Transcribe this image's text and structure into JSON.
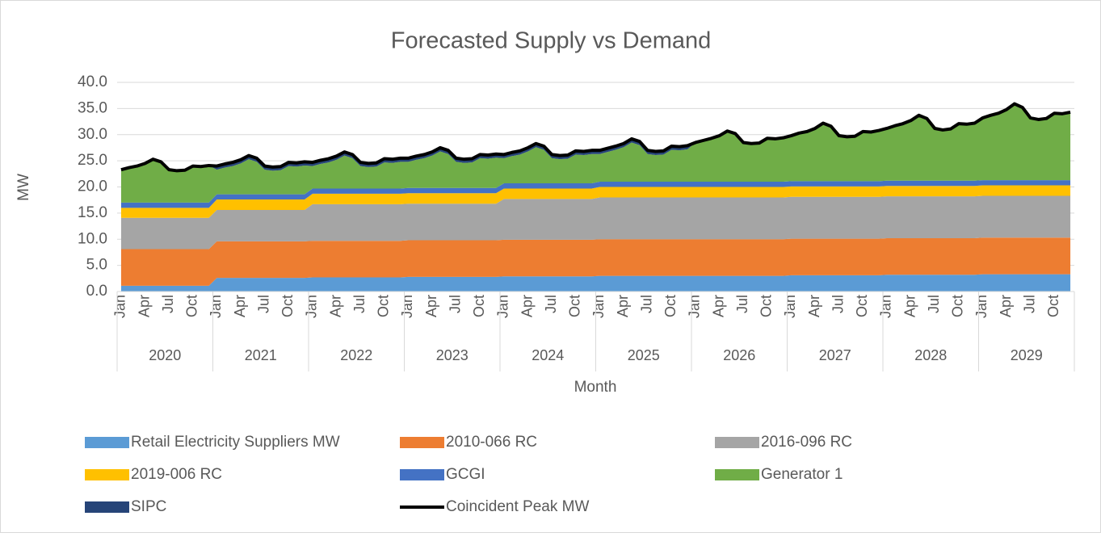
{
  "chart_data": {
    "type": "stacked_area",
    "title": "Forecasted Supply vs Demand",
    "x_label": "Month",
    "y_label": "MW",
    "categories": [
      "Jan",
      null,
      null,
      "Apr",
      null,
      null,
      "Jul",
      null,
      null,
      "Oct",
      null,
      null,
      "Jan",
      null,
      null,
      "Apr",
      null,
      null,
      "Jul",
      null,
      null,
      "Oct",
      null,
      null,
      "Jan",
      null,
      null,
      "Apr",
      null,
      null,
      "Jul",
      null,
      null,
      "Oct",
      null,
      null,
      "Jan",
      null,
      null,
      "Apr",
      null,
      null,
      "Jul",
      null,
      null,
      "Oct",
      null,
      null,
      "Jan",
      null,
      null,
      "Apr",
      null,
      null,
      "Jul",
      null,
      null,
      "Oct",
      null,
      null,
      "Jan",
      null,
      null,
      "Apr",
      null,
      null,
      "Jul",
      null,
      null,
      "Oct",
      null,
      null,
      "Jan",
      null,
      null,
      "Apr",
      null,
      null,
      "Jul",
      null,
      null,
      "Oct",
      null,
      null,
      "Jan",
      null,
      null,
      "Apr",
      null,
      null,
      "Jul",
      null,
      null,
      "Oct",
      null,
      null,
      "Jan",
      null,
      null,
      "Apr",
      null,
      null,
      "Jul",
      null,
      null,
      "Oct",
      null,
      null,
      "Jan",
      null,
      null,
      "Apr",
      null,
      null,
      "Jul",
      null,
      null,
      "Oct",
      null,
      null
    ],
    "groups": [
      "2020",
      "2021",
      "2022",
      "2023",
      "2024",
      "2025",
      "2026",
      "2027",
      "2028",
      "2029"
    ],
    "ylim": [
      0,
      40
    ],
    "yticks": [
      {
        "value": 0,
        "label": "0.0"
      },
      {
        "value": 5,
        "label": "5.0"
      },
      {
        "value": 10,
        "label": "10.0"
      },
      {
        "value": 15,
        "label": "15.0"
      },
      {
        "value": 20,
        "label": "20.0"
      },
      {
        "value": 25,
        "label": "25.0"
      },
      {
        "value": 30,
        "label": "30.0"
      },
      {
        "value": 35,
        "label": "35.0"
      },
      {
        "value": 40,
        "label": "40.0"
      }
    ],
    "grid": true,
    "legend": "bottom",
    "series": [
      {
        "name": "Retail Electricity Suppliers MW",
        "color": "#5b9bd5",
        "values": [
          1.1,
          1.1,
          1.1,
          1.1,
          1.1,
          1.1,
          1.1,
          1.1,
          1.1,
          1.1,
          1.1,
          1.1,
          2.6,
          2.6,
          2.6,
          2.6,
          2.6,
          2.6,
          2.6,
          2.6,
          2.6,
          2.6,
          2.6,
          2.6,
          2.7,
          2.7,
          2.7,
          2.7,
          2.7,
          2.7,
          2.7,
          2.7,
          2.7,
          2.7,
          2.7,
          2.7,
          2.8,
          2.8,
          2.8,
          2.8,
          2.8,
          2.8,
          2.8,
          2.8,
          2.8,
          2.8,
          2.8,
          2.8,
          2.9,
          2.9,
          2.9,
          2.9,
          2.9,
          2.9,
          2.9,
          2.9,
          2.9,
          2.9,
          2.9,
          2.9,
          3.0,
          3.0,
          3.0,
          3.0,
          3.0,
          3.0,
          3.0,
          3.0,
          3.0,
          3.0,
          3.0,
          3.0,
          3.0,
          3.0,
          3.0,
          3.0,
          3.0,
          3.0,
          3.0,
          3.0,
          3.0,
          3.0,
          3.0,
          3.0,
          3.1,
          3.1,
          3.1,
          3.1,
          3.1,
          3.1,
          3.1,
          3.1,
          3.1,
          3.1,
          3.1,
          3.1,
          3.2,
          3.2,
          3.2,
          3.2,
          3.2,
          3.2,
          3.2,
          3.2,
          3.2,
          3.2,
          3.2,
          3.2,
          3.3,
          3.3,
          3.3,
          3.3,
          3.3,
          3.3,
          3.3,
          3.3,
          3.3,
          3.3,
          3.3,
          3.3
        ]
      },
      {
        "name": "2010-066 RC",
        "color": "#ed7d31",
        "values": [
          7.0,
          7.0,
          7.0,
          7.0,
          7.0,
          7.0,
          7.0,
          7.0,
          7.0,
          7.0,
          7.0,
          7.0,
          7.0,
          7.0,
          7.0,
          7.0,
          7.0,
          7.0,
          7.0,
          7.0,
          7.0,
          7.0,
          7.0,
          7.0,
          7.0,
          7.0,
          7.0,
          7.0,
          7.0,
          7.0,
          7.0,
          7.0,
          7.0,
          7.0,
          7.0,
          7.0,
          7.0,
          7.0,
          7.0,
          7.0,
          7.0,
          7.0,
          7.0,
          7.0,
          7.0,
          7.0,
          7.0,
          7.0,
          7.0,
          7.0,
          7.0,
          7.0,
          7.0,
          7.0,
          7.0,
          7.0,
          7.0,
          7.0,
          7.0,
          7.0,
          7.0,
          7.0,
          7.0,
          7.0,
          7.0,
          7.0,
          7.0,
          7.0,
          7.0,
          7.0,
          7.0,
          7.0,
          7.0,
          7.0,
          7.0,
          7.0,
          7.0,
          7.0,
          7.0,
          7.0,
          7.0,
          7.0,
          7.0,
          7.0,
          7.0,
          7.0,
          7.0,
          7.0,
          7.0,
          7.0,
          7.0,
          7.0,
          7.0,
          7.0,
          7.0,
          7.0,
          7.0,
          7.0,
          7.0,
          7.0,
          7.0,
          7.0,
          7.0,
          7.0,
          7.0,
          7.0,
          7.0,
          7.0,
          7.0,
          7.0,
          7.0,
          7.0,
          7.0,
          7.0,
          7.0,
          7.0,
          7.0,
          7.0,
          7.0,
          7.0
        ]
      },
      {
        "name": "2016-096 RC",
        "color": "#a5a5a5",
        "values": [
          6.0,
          6.0,
          6.0,
          6.0,
          6.0,
          6.0,
          6.0,
          6.0,
          6.0,
          6.0,
          6.0,
          6.0,
          6.0,
          6.0,
          6.0,
          6.0,
          6.0,
          6.0,
          6.0,
          6.0,
          6.0,
          6.0,
          6.0,
          6.0,
          7.0,
          7.0,
          7.0,
          7.0,
          7.0,
          7.0,
          7.0,
          7.0,
          7.0,
          7.0,
          7.0,
          7.0,
          7.0,
          7.0,
          7.0,
          7.0,
          7.0,
          7.0,
          7.0,
          7.0,
          7.0,
          7.0,
          7.0,
          7.0,
          7.8,
          7.8,
          7.8,
          7.8,
          7.8,
          7.8,
          7.8,
          7.8,
          7.8,
          7.8,
          7.8,
          7.8,
          8.0,
          8.0,
          8.0,
          8.0,
          8.0,
          8.0,
          8.0,
          8.0,
          8.0,
          8.0,
          8.0,
          8.0,
          8.0,
          8.0,
          8.0,
          8.0,
          8.0,
          8.0,
          8.0,
          8.0,
          8.0,
          8.0,
          8.0,
          8.0,
          8.0,
          8.0,
          8.0,
          8.0,
          8.0,
          8.0,
          8.0,
          8.0,
          8.0,
          8.0,
          8.0,
          8.0,
          8.0,
          8.0,
          8.0,
          8.0,
          8.0,
          8.0,
          8.0,
          8.0,
          8.0,
          8.0,
          8.0,
          8.0,
          8.0,
          8.0,
          8.0,
          8.0,
          8.0,
          8.0,
          8.0,
          8.0,
          8.0,
          8.0,
          8.0,
          8.0
        ]
      },
      {
        "name": "2019-006 RC",
        "color": "#ffc000",
        "values": [
          1.9,
          1.9,
          1.9,
          1.9,
          1.9,
          1.9,
          1.9,
          1.9,
          1.9,
          1.9,
          1.9,
          1.9,
          2.0,
          2.0,
          2.0,
          2.0,
          2.0,
          2.0,
          2.0,
          2.0,
          2.0,
          2.0,
          2.0,
          2.0,
          2.0,
          2.0,
          2.0,
          2.0,
          2.0,
          2.0,
          2.0,
          2.0,
          2.0,
          2.0,
          2.0,
          2.0,
          2.0,
          2.0,
          2.0,
          2.0,
          2.0,
          2.0,
          2.0,
          2.0,
          2.0,
          2.0,
          2.0,
          2.0,
          2.0,
          2.0,
          2.0,
          2.0,
          2.0,
          2.0,
          2.0,
          2.0,
          2.0,
          2.0,
          2.0,
          2.0,
          2.0,
          2.0,
          2.0,
          2.0,
          2.0,
          2.0,
          2.0,
          2.0,
          2.0,
          2.0,
          2.0,
          2.0,
          2.0,
          2.0,
          2.0,
          2.0,
          2.0,
          2.0,
          2.0,
          2.0,
          2.0,
          2.0,
          2.0,
          2.0,
          2.0,
          2.0,
          2.0,
          2.0,
          2.0,
          2.0,
          2.0,
          2.0,
          2.0,
          2.0,
          2.0,
          2.0,
          2.0,
          2.0,
          2.0,
          2.0,
          2.0,
          2.0,
          2.0,
          2.0,
          2.0,
          2.0,
          2.0,
          2.0,
          2.0,
          2.0,
          2.0,
          2.0,
          2.0,
          2.0,
          2.0,
          2.0,
          2.0,
          2.0,
          2.0,
          2.0
        ]
      },
      {
        "name": "GCGI",
        "color": "#4472c4",
        "values": [
          1.0,
          1.0,
          1.0,
          1.0,
          1.0,
          1.0,
          1.0,
          1.0,
          1.0,
          1.0,
          1.0,
          1.0,
          1.0,
          1.0,
          1.0,
          1.0,
          1.0,
          1.0,
          1.0,
          1.0,
          1.0,
          1.0,
          1.0,
          1.0,
          1.0,
          1.0,
          1.0,
          1.0,
          1.0,
          1.0,
          1.0,
          1.0,
          1.0,
          1.0,
          1.0,
          1.0,
          1.0,
          1.0,
          1.0,
          1.0,
          1.0,
          1.0,
          1.0,
          1.0,
          1.0,
          1.0,
          1.0,
          1.0,
          1.0,
          1.0,
          1.0,
          1.0,
          1.0,
          1.0,
          1.0,
          1.0,
          1.0,
          1.0,
          1.0,
          1.0,
          1.0,
          1.0,
          1.0,
          1.0,
          1.0,
          1.0,
          1.0,
          1.0,
          1.0,
          1.0,
          1.0,
          1.0,
          1.0,
          1.0,
          1.0,
          1.0,
          1.0,
          1.0,
          1.0,
          1.0,
          1.0,
          1.0,
          1.0,
          1.0,
          1.0,
          1.0,
          1.0,
          1.0,
          1.0,
          1.0,
          1.0,
          1.0,
          1.0,
          1.0,
          1.0,
          1.0,
          1.0,
          1.0,
          1.0,
          1.0,
          1.0,
          1.0,
          1.0,
          1.0,
          1.0,
          1.0,
          1.0,
          1.0,
          1.0,
          1.0,
          1.0,
          1.0,
          1.0,
          1.0,
          1.0,
          1.0,
          1.0,
          1.0,
          1.0,
          1.0
        ]
      },
      {
        "name": "Generator 1",
        "color": "#70ad47",
        "values": [
          6.3,
          6.7,
          7.0,
          7.5,
          8.3,
          7.8,
          6.3,
          6.1,
          6.2,
          7.0,
          6.9,
          7.1,
          4.7,
          5.1,
          5.4,
          5.9,
          6.7,
          6.2,
          4.7,
          4.5,
          4.6,
          5.4,
          5.3,
          5.5,
          4.3,
          4.7,
          5.0,
          5.5,
          6.3,
          5.8,
          4.3,
          4.1,
          4.2,
          5.0,
          4.9,
          5.1,
          5.0,
          5.4,
          5.7,
          6.2,
          7.0,
          6.5,
          5.0,
          4.8,
          4.9,
          5.7,
          5.6,
          5.8,
          4.8,
          5.2,
          5.5,
          6.1,
          6.9,
          6.4,
          4.8,
          4.6,
          4.7,
          5.5,
          5.4,
          5.6,
          5.3,
          5.7,
          6.1,
          6.6,
          7.5,
          7.0,
          5.3,
          5.1,
          5.2,
          6.1,
          6.0,
          6.2,
          7.5,
          7.9,
          8.3,
          8.8,
          9.7,
          9.2,
          7.5,
          7.3,
          7.4,
          8.3,
          8.2,
          8.4,
          8.7,
          9.2,
          9.5,
          10.1,
          11.1,
          10.5,
          8.7,
          8.5,
          8.6,
          9.5,
          9.4,
          9.7,
          10.0,
          10.5,
          10.9,
          11.5,
          12.5,
          11.9,
          10.0,
          9.7,
          9.9,
          10.9,
          10.8,
          11.0,
          11.9,
          12.4,
          12.8,
          13.5,
          14.6,
          13.9,
          11.9,
          11.6,
          11.8,
          12.8,
          12.7,
          13.0
        ]
      },
      {
        "name": "SIPC",
        "color": "#264478",
        "values": [
          0,
          0,
          0,
          0,
          0,
          0,
          0,
          0,
          0,
          0,
          0,
          0,
          0.7,
          0.7,
          0.7,
          0.7,
          0.7,
          0.7,
          0.7,
          0.7,
          0.7,
          0.7,
          0.7,
          0.7,
          0.7,
          0.7,
          0.7,
          0.7,
          0.7,
          0.7,
          0.7,
          0.7,
          0.7,
          0.7,
          0.7,
          0.7,
          0.7,
          0.7,
          0.7,
          0.7,
          0.7,
          0.7,
          0.7,
          0.7,
          0.7,
          0.7,
          0.7,
          0.7,
          0.7,
          0.7,
          0.7,
          0.7,
          0.7,
          0.7,
          0.7,
          0.7,
          0.7,
          0.7,
          0.7,
          0.7,
          0.7,
          0.7,
          0.7,
          0.7,
          0.7,
          0.7,
          0.7,
          0.7,
          0.7,
          0.7,
          0.7,
          0.7,
          0,
          0,
          0,
          0,
          0,
          0,
          0,
          0,
          0,
          0,
          0,
          0,
          0,
          0,
          0,
          0,
          0,
          0,
          0,
          0,
          0,
          0,
          0,
          0,
          0,
          0,
          0,
          0,
          0,
          0,
          0,
          0,
          0,
          0,
          0,
          0,
          0,
          0,
          0,
          0,
          0,
          0,
          0,
          0,
          0,
          0,
          0,
          0
        ]
      },
      {
        "name": "Coincident Peak MW",
        "color": "#000000",
        "kind": "line",
        "values": [
          23.3,
          23.7,
          24.0,
          24.5,
          25.3,
          24.8,
          23.3,
          23.1,
          23.2,
          24.0,
          23.9,
          24.1,
          24.0,
          24.4,
          24.7,
          25.2,
          26.0,
          25.5,
          24.0,
          23.8,
          23.9,
          24.7,
          24.6,
          24.8,
          24.7,
          25.1,
          25.4,
          25.9,
          26.7,
          26.2,
          24.7,
          24.5,
          24.6,
          25.4,
          25.3,
          25.5,
          25.5,
          25.9,
          26.2,
          26.7,
          27.5,
          27.0,
          25.5,
          25.3,
          25.4,
          26.2,
          26.1,
          26.3,
          26.2,
          26.6,
          26.9,
          27.5,
          28.3,
          27.8,
          26.2,
          26.0,
          26.1,
          26.9,
          26.8,
          27.0,
          27.0,
          27.4,
          27.8,
          28.3,
          29.2,
          28.7,
          27.0,
          26.8,
          26.9,
          27.8,
          27.7,
          27.9,
          28.5,
          28.9,
          29.3,
          29.8,
          30.7,
          30.2,
          28.5,
          28.3,
          28.4,
          29.3,
          29.2,
          29.4,
          29.8,
          30.3,
          30.6,
          31.2,
          32.2,
          31.6,
          29.8,
          29.6,
          29.7,
          30.6,
          30.5,
          30.8,
          31.2,
          31.7,
          32.1,
          32.7,
          33.7,
          33.1,
          31.2,
          30.9,
          31.1,
          32.1,
          32.0,
          32.2,
          33.2,
          33.7,
          34.1,
          34.8,
          35.9,
          35.2,
          33.2,
          32.9,
          33.1,
          34.1,
          34.0,
          34.3
        ]
      }
    ]
  }
}
